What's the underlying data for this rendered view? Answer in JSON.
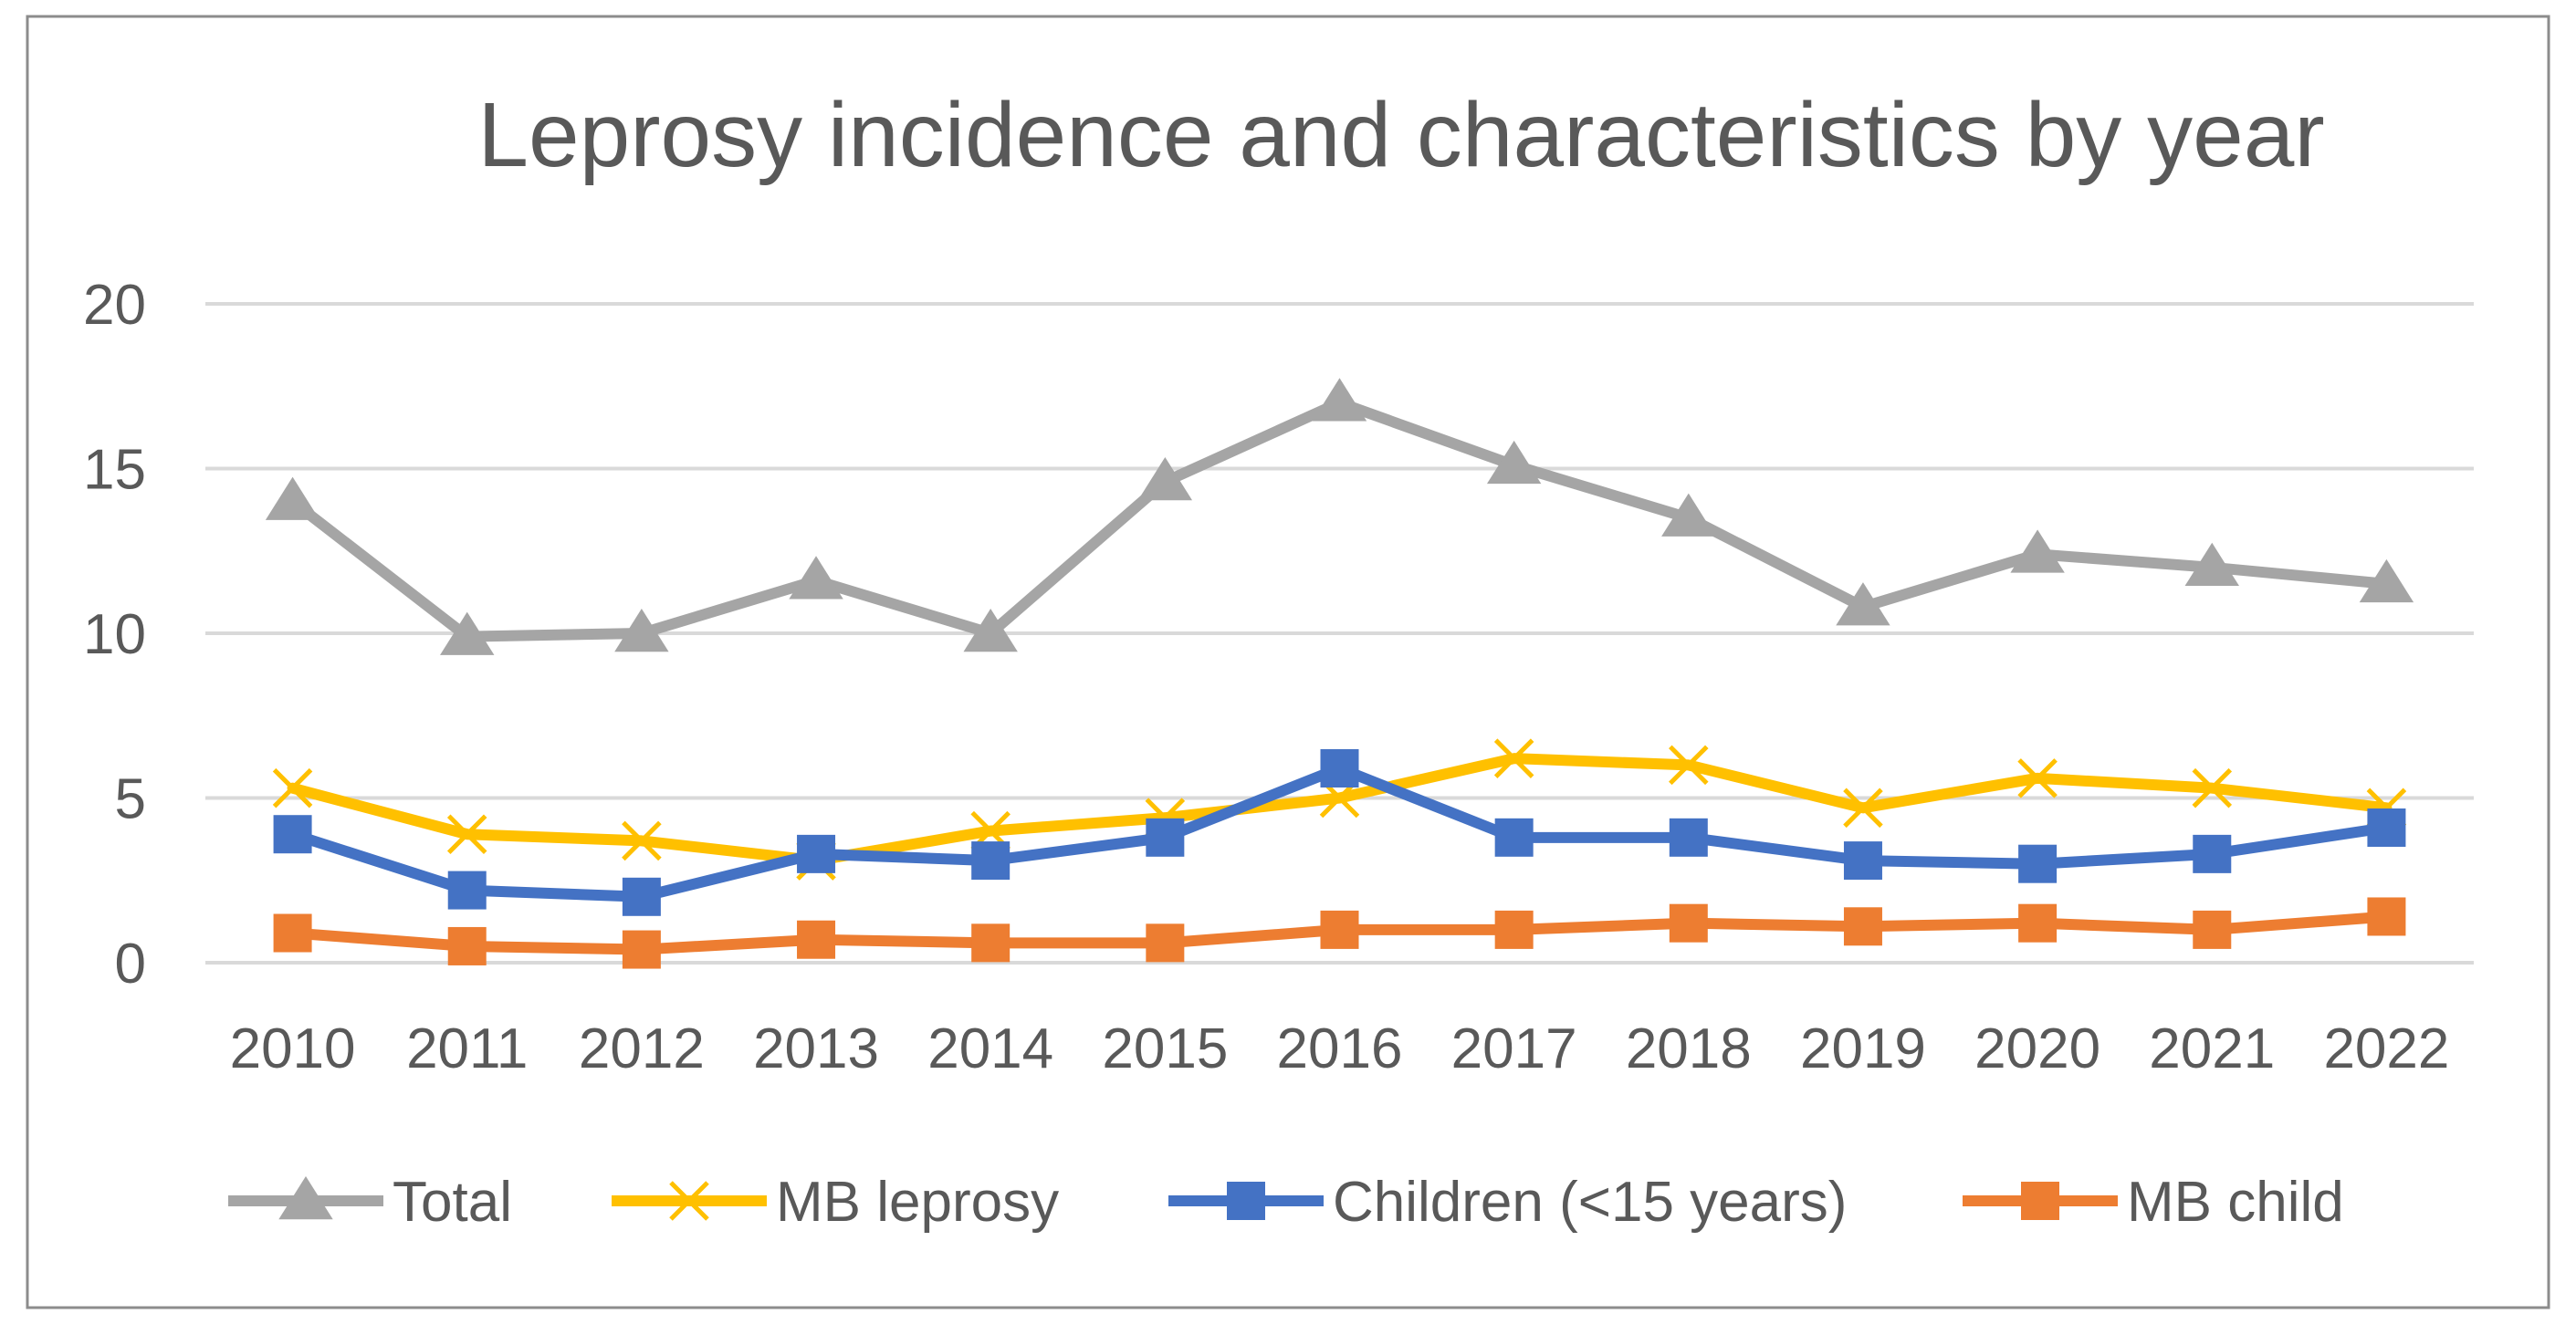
{
  "chart_data": {
    "type": "line",
    "title": "Leprosy incidence and characteristics by year",
    "xlabel": "",
    "ylabel": "",
    "ylim": [
      0,
      20
    ],
    "yticks": [
      "0",
      "5",
      "10",
      "15",
      "20"
    ],
    "grid": true,
    "legend_position": "bottom",
    "categories": [
      "2010",
      "2011",
      "2012",
      "2013",
      "2014",
      "2015",
      "2016",
      "2017",
      "2018",
      "2019",
      "2020",
      "2021",
      "2022"
    ],
    "series": [
      {
        "name": "Total",
        "color": "#a5a5a5",
        "marker": "triangle",
        "values": [
          14.0,
          9.9,
          10.0,
          11.6,
          10.0,
          14.6,
          17.0,
          15.1,
          13.5,
          10.8,
          12.4,
          12.0,
          11.5
        ]
      },
      {
        "name": "MB leprosy",
        "color": "#ffc000",
        "marker": "x",
        "values": [
          5.3,
          3.9,
          3.7,
          3.1,
          4.0,
          4.4,
          5.0,
          6.2,
          6.0,
          4.7,
          5.6,
          5.3,
          4.7
        ]
      },
      {
        "name": "Children (<15 years)",
        "color": "#4472c4",
        "marker": "square",
        "values": [
          3.9,
          2.2,
          2.0,
          3.3,
          3.1,
          3.8,
          5.9,
          3.8,
          3.8,
          3.1,
          3.0,
          3.3,
          4.1
        ]
      },
      {
        "name": "MB child",
        "color": "#ed7d31",
        "marker": "square",
        "values": [
          0.9,
          0.5,
          0.4,
          0.7,
          0.6,
          0.6,
          1.0,
          1.0,
          1.2,
          1.1,
          1.2,
          1.0,
          1.4
        ]
      }
    ]
  }
}
